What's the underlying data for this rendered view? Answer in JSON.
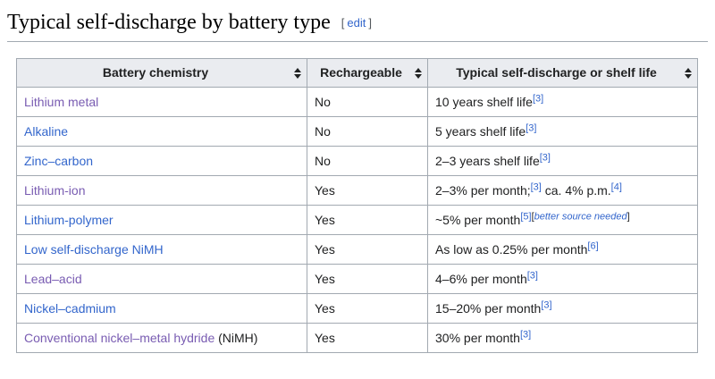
{
  "heading": {
    "title": "Typical self-discharge by battery type",
    "edit_bracket_open": "[",
    "edit_label": "edit",
    "edit_bracket_close": "]"
  },
  "colors": {
    "link_blue": "#3366cc",
    "link_visited_purple": "#795cb2",
    "table_border": "#a2a9b1",
    "header_background": "#eaecf0",
    "body_text": "#202122"
  },
  "icons": {
    "sort_icon": "up-down-triangles"
  },
  "table": {
    "headers": [
      {
        "label": "Battery chemistry",
        "sortable": true
      },
      {
        "label": "Rechargeable",
        "sortable": true
      },
      {
        "label": "Typical self-discharge or shelf life",
        "sortable": true
      }
    ],
    "rows": [
      {
        "chemistry": {
          "label": "Lithium metal",
          "visited": true,
          "suffix": ""
        },
        "rechargeable": "No",
        "shelf": [
          {
            "kind": "text",
            "text": "10 years shelf life"
          },
          {
            "kind": "ref",
            "text": "[3]"
          }
        ]
      },
      {
        "chemistry": {
          "label": "Alkaline",
          "visited": false,
          "suffix": ""
        },
        "rechargeable": "No",
        "shelf": [
          {
            "kind": "text",
            "text": "5 years shelf life"
          },
          {
            "kind": "ref",
            "text": "[3]"
          }
        ]
      },
      {
        "chemistry": {
          "label": "Zinc–carbon",
          "visited": false,
          "suffix": ""
        },
        "rechargeable": "No",
        "shelf": [
          {
            "kind": "text",
            "text": "2–3 years shelf life"
          },
          {
            "kind": "ref",
            "text": "[3]"
          }
        ]
      },
      {
        "chemistry": {
          "label": "Lithium-ion",
          "visited": true,
          "suffix": ""
        },
        "rechargeable": "Yes",
        "shelf": [
          {
            "kind": "text",
            "text": "2–3% per month;"
          },
          {
            "kind": "ref",
            "text": "[3]"
          },
          {
            "kind": "text",
            "text": " ca. 4% p.m."
          },
          {
            "kind": "ref",
            "text": "[4]"
          }
        ]
      },
      {
        "chemistry": {
          "label": "Lithium-polymer",
          "visited": false,
          "suffix": ""
        },
        "rechargeable": "Yes",
        "shelf": [
          {
            "kind": "text",
            "text": "~5% per month"
          },
          {
            "kind": "ref",
            "text": "[5]"
          },
          {
            "kind": "tag",
            "text": "better source needed",
            "bracket_open": "[",
            "bracket_close": "]"
          }
        ]
      },
      {
        "chemistry": {
          "label": "Low self-discharge NiMH",
          "visited": false,
          "suffix": ""
        },
        "rechargeable": "Yes",
        "shelf": [
          {
            "kind": "text",
            "text": "As low as 0.25% per month"
          },
          {
            "kind": "ref",
            "text": "[6]"
          }
        ]
      },
      {
        "chemistry": {
          "label": "Lead–acid",
          "visited": true,
          "suffix": ""
        },
        "rechargeable": "Yes",
        "shelf": [
          {
            "kind": "text",
            "text": "4–6% per month"
          },
          {
            "kind": "ref",
            "text": "[3]"
          }
        ]
      },
      {
        "chemistry": {
          "label": "Nickel–cadmium",
          "visited": false,
          "suffix": ""
        },
        "rechargeable": "Yes",
        "shelf": [
          {
            "kind": "text",
            "text": "15–20% per month"
          },
          {
            "kind": "ref",
            "text": "[3]"
          }
        ]
      },
      {
        "chemistry": {
          "label": "Conventional nickel–metal hydride",
          "visited": true,
          "suffix": " (NiMH)"
        },
        "rechargeable": "Yes",
        "shelf": [
          {
            "kind": "text",
            "text": "30% per month"
          },
          {
            "kind": "ref",
            "text": "[3]"
          }
        ]
      }
    ]
  }
}
